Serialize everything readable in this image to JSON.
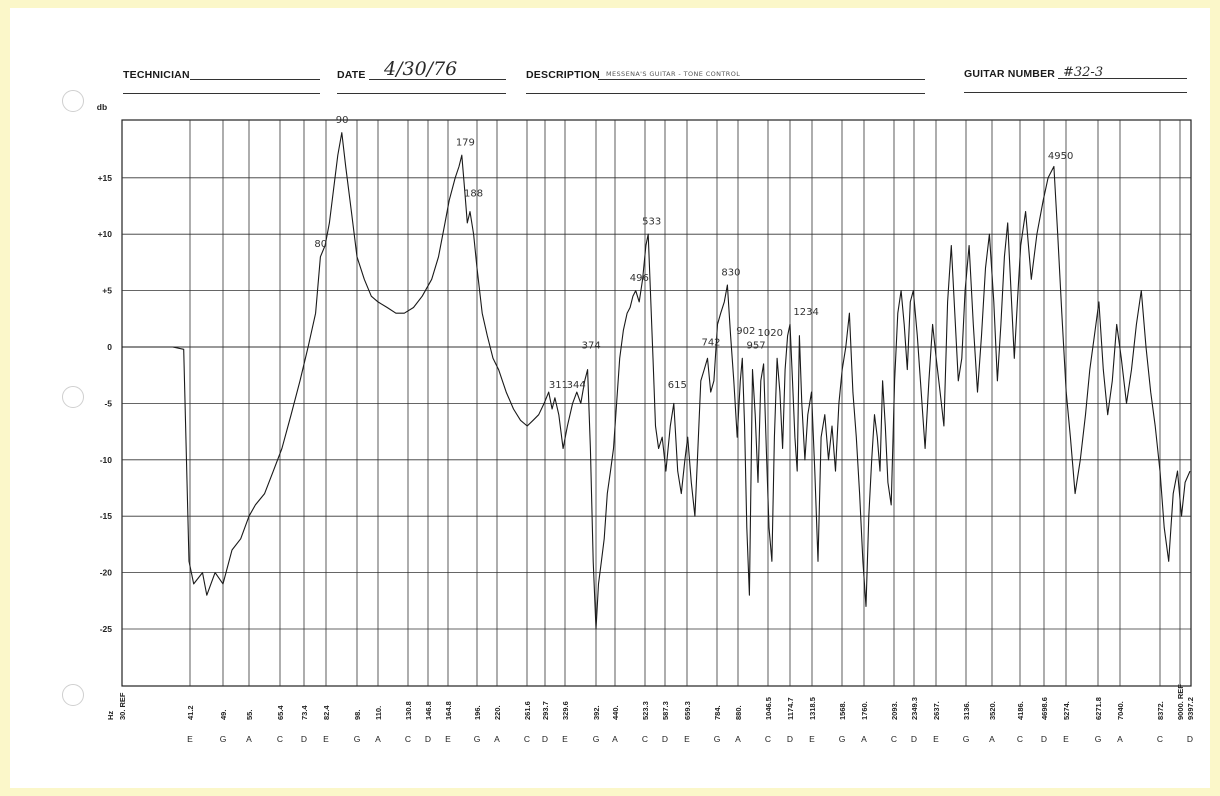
{
  "header": {
    "technician_label": "TECHNICIAN",
    "technician_value": "",
    "date_label": "DATE",
    "date_value": "4/30/76",
    "description_label": "DESCRIPTION",
    "description_value": "MESSENA'S GUITAR  - TONE CONTROL",
    "guitar_number_label": "GUITAR NUMBER",
    "guitar_number_value": "#32-3"
  },
  "chart_data": {
    "type": "line",
    "ylabel": "db",
    "xlabel": "Hz",
    "ylim": [
      -30,
      20
    ],
    "yticks": [
      {
        "value": 15,
        "label": "+15"
      },
      {
        "value": 10,
        "label": "+10"
      },
      {
        "value": 5,
        "label": "+5"
      },
      {
        "value": 0,
        "label": "0"
      },
      {
        "value": -5,
        "label": "-5"
      },
      {
        "value": -10,
        "label": "-10"
      },
      {
        "value": -15,
        "label": "-15"
      },
      {
        "value": -20,
        "label": "-20"
      },
      {
        "value": -25,
        "label": "-25"
      }
    ],
    "grid": true,
    "xticks": [
      {
        "freq": "30. REF",
        "note": ""
      },
      {
        "freq": "41.2",
        "note": "E"
      },
      {
        "freq": "49.",
        "note": "G"
      },
      {
        "freq": "55.",
        "note": "A"
      },
      {
        "freq": "65.4",
        "note": "C"
      },
      {
        "freq": "73.4",
        "note": "D"
      },
      {
        "freq": "82.4",
        "note": "E"
      },
      {
        "freq": "98.",
        "note": "G"
      },
      {
        "freq": "110.",
        "note": "A"
      },
      {
        "freq": "130.8",
        "note": "C"
      },
      {
        "freq": "146.8",
        "note": "D"
      },
      {
        "freq": "164.8",
        "note": "E"
      },
      {
        "freq": "196.",
        "note": "G"
      },
      {
        "freq": "220.",
        "note": "A"
      },
      {
        "freq": "261.6",
        "note": "C"
      },
      {
        "freq": "293.7",
        "note": "D"
      },
      {
        "freq": "329.6",
        "note": "E"
      },
      {
        "freq": "392.",
        "note": "G"
      },
      {
        "freq": "440.",
        "note": "A"
      },
      {
        "freq": "523.3",
        "note": "C"
      },
      {
        "freq": "587.3",
        "note": "D"
      },
      {
        "freq": "659.3",
        "note": "E"
      },
      {
        "freq": "784.",
        "note": "G"
      },
      {
        "freq": "880.",
        "note": "A"
      },
      {
        "freq": "1046.5",
        "note": "C"
      },
      {
        "freq": "1174.7",
        "note": "D"
      },
      {
        "freq": "1318.5",
        "note": "E"
      },
      {
        "freq": "1568.",
        "note": "G"
      },
      {
        "freq": "1760.",
        "note": "A"
      },
      {
        "freq": "2093.",
        "note": "C"
      },
      {
        "freq": "2349.3",
        "note": "D"
      },
      {
        "freq": "2637.",
        "note": "E"
      },
      {
        "freq": "3136.",
        "note": "G"
      },
      {
        "freq": "3520.",
        "note": "A"
      },
      {
        "freq": "4186.",
        "note": "C"
      },
      {
        "freq": "4698.6",
        "note": "D"
      },
      {
        "freq": "5274.",
        "note": "E"
      },
      {
        "freq": "6271.8",
        "note": "G"
      },
      {
        "freq": "7040.",
        "note": "A"
      },
      {
        "freq": "8372.",
        "note": "C"
      },
      {
        "freq": "9000. REF",
        "note": ""
      },
      {
        "freq": "9397.2",
        "note": "D"
      }
    ],
    "series": [
      {
        "points": [
          [
            30,
            0
          ],
          [
            38,
            0
          ],
          [
            40,
            -0.2
          ],
          [
            41,
            -19
          ],
          [
            42,
            -21
          ],
          [
            44,
            -20
          ],
          [
            45,
            -22
          ],
          [
            47,
            -20
          ],
          [
            49,
            -21
          ],
          [
            51,
            -18
          ],
          [
            53,
            -17
          ],
          [
            55,
            -15
          ],
          [
            57,
            -14
          ],
          [
            60,
            -13
          ],
          [
            63,
            -11
          ],
          [
            66,
            -9
          ],
          [
            69,
            -6
          ],
          [
            72,
            -3
          ],
          [
            75,
            0
          ],
          [
            78,
            3
          ],
          [
            80,
            8
          ],
          [
            82,
            9
          ],
          [
            84,
            11
          ],
          [
            86,
            14
          ],
          [
            88,
            17
          ],
          [
            90,
            19
          ],
          [
            92,
            16
          ],
          [
            95,
            12
          ],
          [
            98,
            8
          ],
          [
            102,
            6
          ],
          [
            106,
            4.5
          ],
          [
            110,
            4
          ],
          [
            116,
            3.5
          ],
          [
            122,
            3
          ],
          [
            128,
            3
          ],
          [
            135,
            3.5
          ],
          [
            142,
            4.5
          ],
          [
            150,
            6
          ],
          [
            156,
            8
          ],
          [
            162,
            11
          ],
          [
            166,
            13
          ],
          [
            172,
            15
          ],
          [
            176,
            16
          ],
          [
            179,
            17
          ],
          [
            182,
            14
          ],
          [
            185,
            11
          ],
          [
            188,
            12
          ],
          [
            192,
            10
          ],
          [
            196,
            7
          ],
          [
            202,
            3
          ],
          [
            208,
            1
          ],
          [
            215,
            -1
          ],
          [
            222,
            -2
          ],
          [
            232,
            -4
          ],
          [
            242,
            -5.5
          ],
          [
            252,
            -6.5
          ],
          [
            262,
            -7
          ],
          [
            272,
            -6.5
          ],
          [
            282,
            -6
          ],
          [
            292,
            -5
          ],
          [
            300,
            -4
          ],
          [
            306,
            -5.5
          ],
          [
            311,
            -4.5
          ],
          [
            318,
            -6
          ],
          [
            326,
            -9
          ],
          [
            334,
            -7
          ],
          [
            344,
            -5
          ],
          [
            352,
            -4
          ],
          [
            360,
            -5
          ],
          [
            368,
            -3
          ],
          [
            374,
            -2
          ],
          [
            380,
            -9
          ],
          [
            386,
            -19
          ],
          [
            392,
            -25
          ],
          [
            398,
            -21
          ],
          [
            405,
            -19
          ],
          [
            412,
            -17
          ],
          [
            420,
            -13
          ],
          [
            428,
            -11
          ],
          [
            436,
            -9
          ],
          [
            444,
            -5
          ],
          [
            452,
            -1
          ],
          [
            462,
            1.5
          ],
          [
            472,
            3
          ],
          [
            480,
            3.5
          ],
          [
            488,
            4.5
          ],
          [
            496,
            5
          ],
          [
            506,
            4
          ],
          [
            516,
            6
          ],
          [
            526,
            9
          ],
          [
            533,
            10
          ],
          [
            540,
            5
          ],
          [
            548,
            -1
          ],
          [
            556,
            -7
          ],
          [
            566,
            -9
          ],
          [
            578,
            -8
          ],
          [
            590,
            -11
          ],
          [
            604,
            -7
          ],
          [
            615,
            -5
          ],
          [
            628,
            -11
          ],
          [
            640,
            -13
          ],
          [
            652,
            -10
          ],
          [
            662,
            -8
          ],
          [
            676,
            -12
          ],
          [
            690,
            -15
          ],
          [
            702,
            -9
          ],
          [
            714,
            -3
          ],
          [
            728,
            -2
          ],
          [
            742,
            -1
          ],
          [
            756,
            -4
          ],
          [
            770,
            -3
          ],
          [
            786,
            2
          ],
          [
            800,
            3
          ],
          [
            816,
            4
          ],
          [
            830,
            5.5
          ],
          [
            845,
            1
          ],
          [
            860,
            -3
          ],
          [
            876,
            -8
          ],
          [
            892,
            -3
          ],
          [
            902,
            -1
          ],
          [
            914,
            -7
          ],
          [
            926,
            -16
          ],
          [
            940,
            -22
          ],
          [
            957,
            -2
          ],
          [
            972,
            -6
          ],
          [
            988,
            -12
          ],
          [
            1004,
            -3
          ],
          [
            1020,
            -1.5
          ],
          [
            1036,
            -9
          ],
          [
            1052,
            -16
          ],
          [
            1068,
            -19
          ],
          [
            1082,
            -8
          ],
          [
            1098,
            -1
          ],
          [
            1114,
            -4
          ],
          [
            1130,
            -9
          ],
          [
            1145,
            -2
          ],
          [
            1160,
            1
          ],
          [
            1175,
            2
          ],
          [
            1190,
            -3
          ],
          [
            1205,
            -8
          ],
          [
            1220,
            -11
          ],
          [
            1234,
            1
          ],
          [
            1250,
            -5
          ],
          [
            1270,
            -10
          ],
          [
            1290,
            -6
          ],
          [
            1315,
            -4
          ],
          [
            1340,
            -11
          ],
          [
            1365,
            -19
          ],
          [
            1390,
            -8
          ],
          [
            1420,
            -6
          ],
          [
            1450,
            -10
          ],
          [
            1480,
            -7
          ],
          [
            1510,
            -11
          ],
          [
            1540,
            -5
          ],
          [
            1570,
            -2
          ],
          [
            1600,
            0
          ],
          [
            1630,
            3
          ],
          [
            1660,
            -4
          ],
          [
            1690,
            -8
          ],
          [
            1720,
            -13
          ],
          [
            1750,
            -19
          ],
          [
            1780,
            -23
          ],
          [
            1810,
            -15
          ],
          [
            1840,
            -10
          ],
          [
            1870,
            -6
          ],
          [
            1900,
            -8
          ],
          [
            1930,
            -11
          ],
          [
            1960,
            -3
          ],
          [
            1990,
            -7
          ],
          [
            2020,
            -12
          ],
          [
            2060,
            -14
          ],
          [
            2100,
            -3
          ],
          [
            2140,
            3
          ],
          [
            2180,
            5
          ],
          [
            2220,
            2
          ],
          [
            2260,
            -2
          ],
          [
            2300,
            4
          ],
          [
            2340,
            5
          ],
          [
            2390,
            1
          ],
          [
            2440,
            -4
          ],
          [
            2490,
            -9
          ],
          [
            2540,
            -3
          ],
          [
            2590,
            2
          ],
          [
            2640,
            -1
          ],
          [
            2700,
            -4
          ],
          [
            2760,
            -7
          ],
          [
            2820,
            4
          ],
          [
            2880,
            9
          ],
          [
            2940,
            3
          ],
          [
            3000,
            -3
          ],
          [
            3060,
            -1
          ],
          [
            3120,
            5
          ],
          [
            3180,
            9
          ],
          [
            3240,
            2
          ],
          [
            3300,
            -4
          ],
          [
            3360,
            1
          ],
          [
            3420,
            7
          ],
          [
            3480,
            10
          ],
          [
            3560,
            4
          ],
          [
            3640,
            -3
          ],
          [
            3720,
            2
          ],
          [
            3800,
            8
          ],
          [
            3880,
            11
          ],
          [
            3960,
            5
          ],
          [
            4040,
            -1
          ],
          [
            4120,
            4
          ],
          [
            4200,
            9
          ],
          [
            4300,
            12
          ],
          [
            4420,
            6
          ],
          [
            4540,
            10
          ],
          [
            4680,
            13
          ],
          [
            4800,
            15
          ],
          [
            4950,
            16
          ],
          [
            5050,
            10
          ],
          [
            5160,
            3
          ],
          [
            5280,
            -4
          ],
          [
            5400,
            -8
          ],
          [
            5540,
            -13
          ],
          [
            5700,
            -10
          ],
          [
            5860,
            -6
          ],
          [
            6000,
            -2
          ],
          [
            6150,
            1
          ],
          [
            6300,
            4
          ],
          [
            6450,
            -2
          ],
          [
            6600,
            -6
          ],
          [
            6760,
            -3
          ],
          [
            6920,
            2
          ],
          [
            7080,
            -1
          ],
          [
            7240,
            -5
          ],
          [
            7400,
            -2
          ],
          [
            7560,
            2
          ],
          [
            7720,
            5
          ],
          [
            7880,
            0
          ],
          [
            8040,
            -4
          ],
          [
            8200,
            -7
          ],
          [
            8372,
            -11
          ],
          [
            8500,
            -16
          ],
          [
            8640,
            -19
          ],
          [
            8780,
            -13
          ],
          [
            8920,
            -11
          ],
          [
            9060,
            -15
          ],
          [
            9200,
            -12
          ],
          [
            9397,
            -11
          ]
        ]
      }
    ],
    "annotations": [
      {
        "text": "90",
        "x": 90,
        "y": 19.5
      },
      {
        "text": "80",
        "x": 80,
        "y": 8.5
      },
      {
        "text": "179",
        "x": 179,
        "y": 17.5
      },
      {
        "text": "188",
        "x": 188,
        "y": 13
      },
      {
        "text": "533",
        "x": 533,
        "y": 10.5
      },
      {
        "text": "496",
        "x": 496,
        "y": 5.5
      },
      {
        "text": "830",
        "x": 830,
        "y": 6
      },
      {
        "text": "374",
        "x": 374,
        "y": -0.5
      },
      {
        "text": "311",
        "x": 311,
        "y": -4
      },
      {
        "text": "344",
        "x": 344,
        "y": -4
      },
      {
        "text": "615",
        "x": 615,
        "y": -4
      },
      {
        "text": "742",
        "x": 742,
        "y": -0.2
      },
      {
        "text": "902",
        "x": 902,
        "y": 0.8
      },
      {
        "text": "957",
        "x": 957,
        "y": -0.5
      },
      {
        "text": "1020",
        "x": 1020,
        "y": 0.6
      },
      {
        "text": "1234",
        "x": 1234,
        "y": 2.5
      },
      {
        "text": "4950",
        "x": 4950,
        "y": 16.3
      }
    ]
  }
}
